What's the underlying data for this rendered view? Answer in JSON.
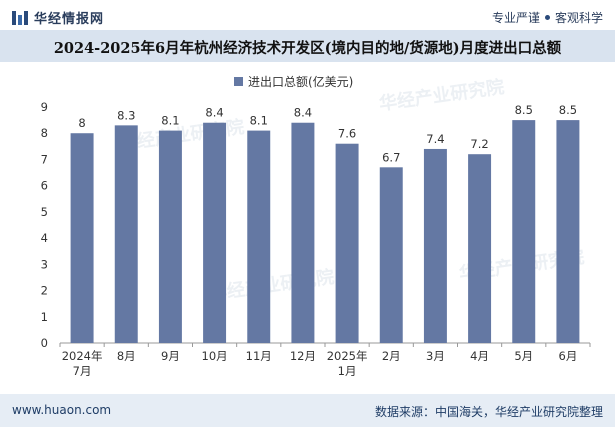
{
  "header": {
    "logo_text": "华经情报网",
    "tagline_left": "专业严谨",
    "tagline_right": "客观科学"
  },
  "title": "2024-2025年6月年杭州经济技术开发区(境内目的地/货源地)月度进出口总额",
  "footer": {
    "website": "www.huaon.com",
    "source": "数据来源：中国海关，华经产业研究院整理"
  },
  "watermark": "华经产业研究院",
  "chart_data": {
    "type": "bar",
    "title": "2024-2025年6月年杭州经济技术开发区(境内目的地/货源地)月度进出口总额",
    "legend": "进出口总额(亿美元)",
    "legend_position": "top",
    "categories": [
      "2024年\n7月",
      "8月",
      "9月",
      "10月",
      "11月",
      "12月",
      "2025年\n1月",
      "2月",
      "3月",
      "4月",
      "5月",
      "6月"
    ],
    "values": [
      8,
      8.3,
      8.1,
      8.4,
      8.1,
      8.4,
      7.6,
      6.7,
      7.4,
      7.2,
      8.5,
      8.5
    ],
    "value_labels": [
      "8",
      "8.3",
      "8.1",
      "8.4",
      "8.1",
      "8.4",
      "7.6",
      "6.7",
      "7.4",
      "7.2",
      "8.5",
      "8.5"
    ],
    "ylim": [
      0,
      9
    ],
    "yticks": [
      "0",
      "1",
      "2",
      "3",
      "4",
      "5",
      "6",
      "7",
      "8",
      "9"
    ],
    "xlabel": "",
    "ylabel": "",
    "grid": false,
    "bar_color": "#6478a3"
  }
}
